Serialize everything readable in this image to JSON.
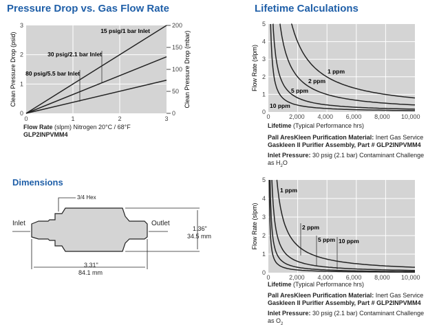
{
  "titles": {
    "pressure": "Pressure Drop vs. Gas Flow Rate",
    "lifetime": "Lifetime Calculations",
    "dimensions": "Dimensions"
  },
  "chart_data": [
    {
      "type": "line",
      "title": "Pressure Drop vs. Gas Flow Rate",
      "xlabel": "Flow Rate (slpm) Nitrogen 20°C / 68°F",
      "xlabel_bold": "Flow Rate",
      "xlabel_rest": " (slpm) Nitrogen 20°C / 68°F",
      "subtitle": "GLP2INPVMM4",
      "ylabel": "Clean Pressure Drop (psid)",
      "y2label": "Clean Pressure Drop (mbar)",
      "xlim": [
        0,
        3
      ],
      "ylim": [
        0,
        3
      ],
      "y2lim": [
        0,
        200
      ],
      "xticks": [
        "0",
        "1",
        "2",
        "3"
      ],
      "yticks": [
        "0",
        "1",
        "2",
        "3"
      ],
      "y2ticks": [
        "0",
        "50",
        "100",
        "150",
        "200"
      ],
      "series": [
        {
          "name": "15 psig/1 bar Inlet",
          "x": [
            0,
            3
          ],
          "y": [
            0,
            3
          ]
        },
        {
          "name": "30 psig/2.1 bar Inlet",
          "x": [
            0,
            3
          ],
          "y": [
            0,
            1.93
          ]
        },
        {
          "name": "80 psig/5.5 bar Inlet",
          "x": [
            0,
            3
          ],
          "y": [
            0,
            1.13
          ]
        }
      ]
    },
    {
      "type": "line",
      "title": "Lifetime Calculations (H2O)",
      "xlabel_bold": "Lifetime",
      "xlabel_rest": " (Typical Performance hrs)",
      "ylabel": "Flow Rate (slpm)",
      "xlim": [
        0,
        10300
      ],
      "ylim": [
        0,
        5
      ],
      "xticks": [
        "0",
        "2,000",
        "4,000",
        "6,000",
        "8,000",
        "10,000"
      ],
      "yticks": [
        "0",
        "1",
        "2",
        "3",
        "4",
        "5"
      ],
      "series": [
        {
          "name": "1 ppm",
          "k": 8200
        },
        {
          "name": "2 ppm",
          "k": 4100
        },
        {
          "name": "5 ppm",
          "k": 1650
        },
        {
          "name": "10 ppm",
          "k": 800
        }
      ]
    },
    {
      "type": "line",
      "title": "Lifetime Calculations (O2)",
      "xlabel_bold": "Lifetime",
      "xlabel_rest": " (Typical Performance hrs)",
      "ylabel": "Flow Rate (slpm)",
      "xlim": [
        0,
        10300
      ],
      "ylim": [
        0,
        5
      ],
      "xticks": [
        "0",
        "2,000",
        "4,000",
        "6,000",
        "8,000",
        "10,000"
      ],
      "yticks": [
        "0",
        "1",
        "2",
        "3",
        "4",
        "5"
      ],
      "series": [
        {
          "name": "1 ppm",
          "k": 3000
        },
        {
          "name": "2 ppm",
          "k": 1250
        },
        {
          "name": "5 ppm",
          "k": 600
        },
        {
          "name": "10 ppm",
          "k": 300
        }
      ]
    }
  ],
  "notes": [
    {
      "l1b": "Pall AresKleen Purification Material:",
      "l1": " Inert Gas Service",
      "l2": "Gaskleen II Purifier Assembly, Part # GLP2INPVMM4",
      "l3b": "Inlet Pressure:",
      "l3": " 30 psig (2.1 bar) Contaminant Challenge",
      "l4": "as H",
      "sub": "2",
      "l4e": "O"
    },
    {
      "l1b": "Pall AresKleen Purification Material:",
      "l1": " Inert Gas Service",
      "l2": "Gaskleen II Purifier Assembly, Part # GLP2INPVMM4",
      "l3b": "Inlet Pressure:",
      "l3": " 30 psig (2.1 bar) Contaminant Challenge",
      "l4": "as O",
      "sub": "2",
      "l4e": ""
    }
  ],
  "dims": {
    "hex": "3/4 Hex",
    "inlet": "Inlet",
    "outlet": "Outlet",
    "h_in": "1.36\"",
    "h_mm": "34.5 mm",
    "l_in": "3.31\"",
    "l_mm": "84.1 mm"
  }
}
